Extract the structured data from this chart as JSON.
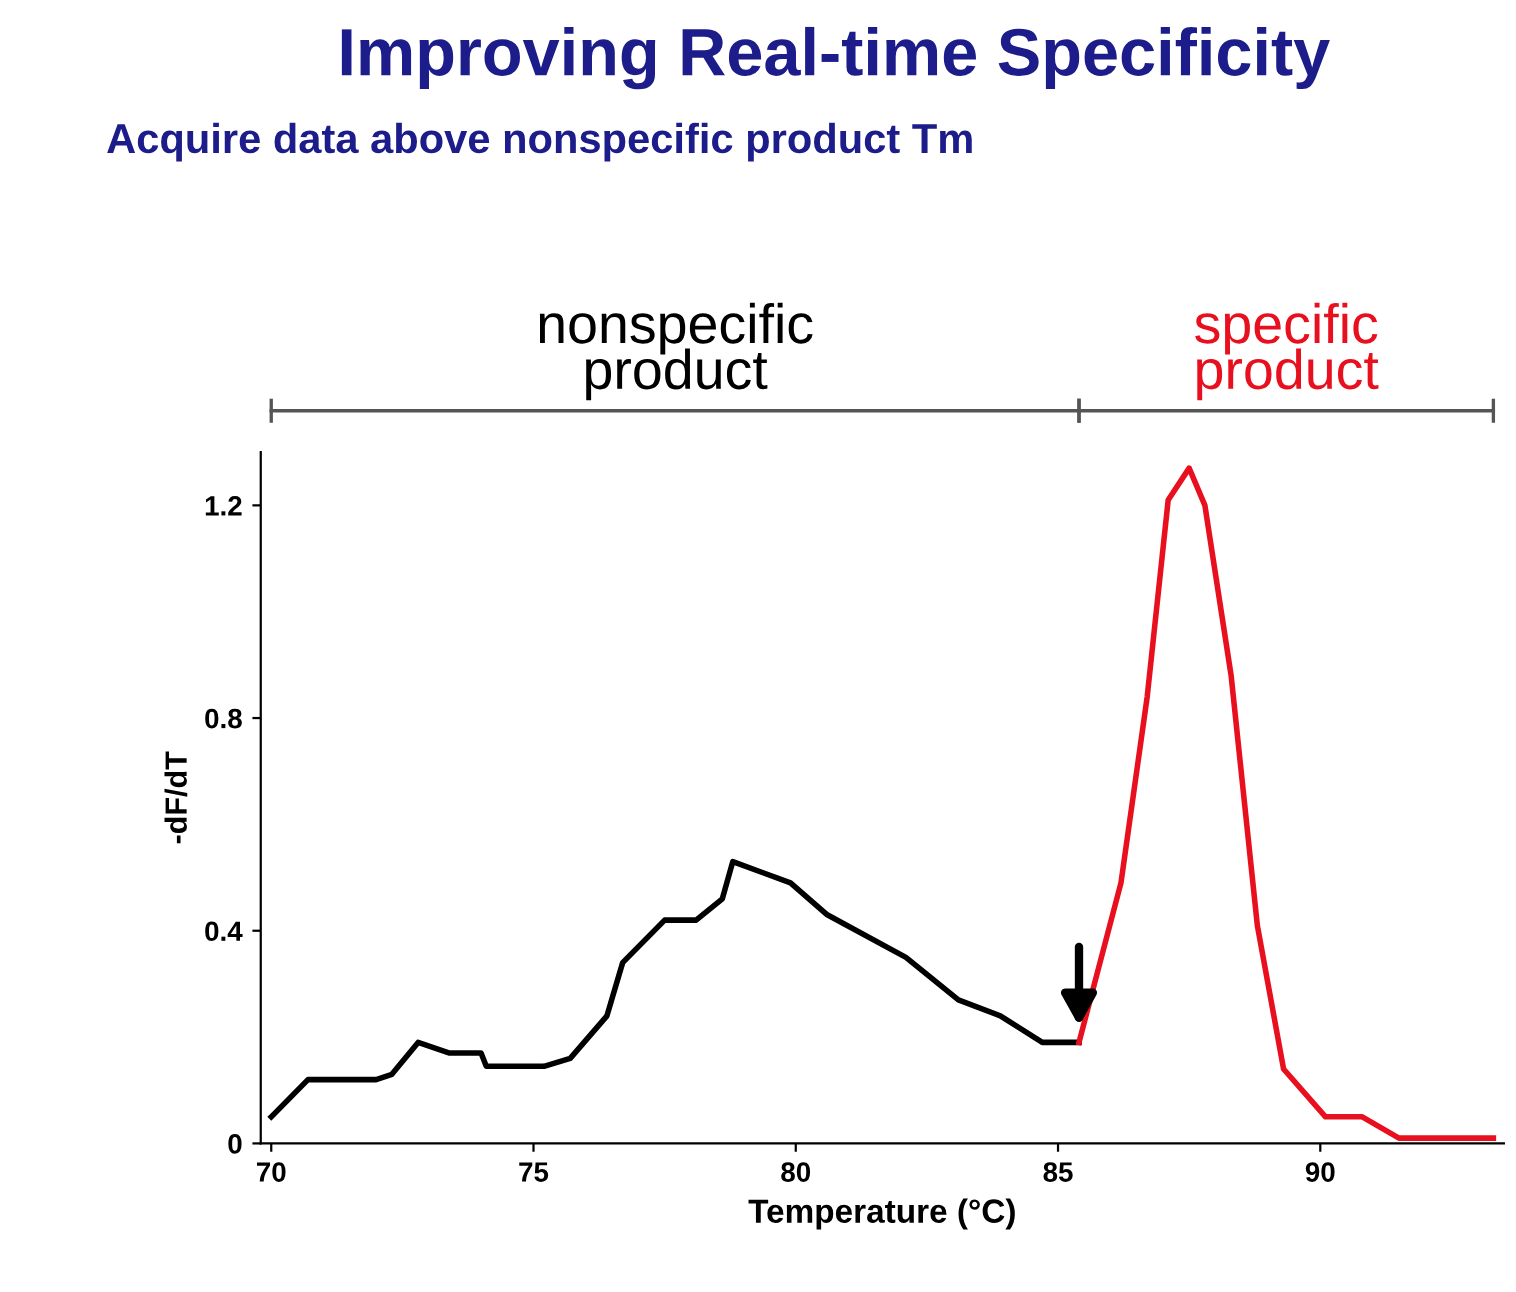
{
  "chart_data": {
    "type": "line",
    "title": "Improving Real-time Specificity",
    "subtitle": "Acquire data above nonspecific product Tm",
    "xlabel": "Temperature (°C)",
    "ylabel": "-dF/dT",
    "xlim": [
      69.8,
      93.5
    ],
    "xticks": [
      70,
      75,
      80,
      85,
      90
    ],
    "ylim": [
      0,
      1.3
    ],
    "yticks": [
      0,
      0.4,
      0.8,
      1.2
    ],
    "grid": false,
    "legend": false,
    "series": [
      {
        "color": "#000000",
        "x": [
          70.0,
          70.7,
          72.0,
          72.3,
          72.8,
          73.4,
          74.0,
          74.1,
          75.2,
          75.7,
          76.4,
          76.7,
          77.5,
          78.1,
          78.6,
          78.8,
          79.9,
          80.6,
          82.1,
          83.1,
          83.9,
          84.7,
          85.4
        ],
        "values": [
          0.05,
          0.12,
          0.12,
          0.13,
          0.19,
          0.17,
          0.17,
          0.145,
          0.145,
          0.16,
          0.24,
          0.34,
          0.42,
          0.42,
          0.46,
          0.53,
          0.49,
          0.43,
          0.35,
          0.27,
          0.24,
          0.19,
          0.19
        ]
      },
      {
        "color": "#e8101e",
        "x": [
          85.4,
          86.2,
          86.7,
          87.1,
          87.5,
          87.8,
          88.3,
          88.8,
          89.3,
          90.1,
          90.8,
          91.5,
          93.3
        ],
        "values": [
          0.19,
          0.49,
          0.84,
          1.21,
          1.27,
          1.2,
          0.88,
          0.41,
          0.14,
          0.05,
          0.05,
          0.01,
          0.01
        ]
      }
    ],
    "annotations": [
      "nonspecific\nproduct",
      "specific\nproduct"
    ]
  }
}
